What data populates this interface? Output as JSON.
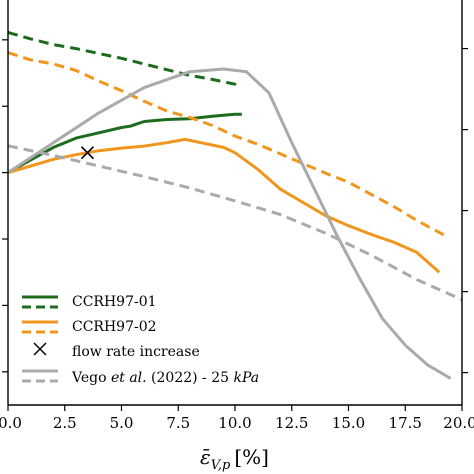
{
  "chart_data": {
    "type": "line",
    "xlabel": "ε̄V,p [%]",
    "xlim": [
      0,
      20
    ],
    "grid": false,
    "legend": "lower-left",
    "x_ticks": [
      "0.0",
      "2.5",
      "5.0",
      "7.5",
      "10.0",
      "12.5",
      "15.0",
      "17.5",
      "20.0"
    ],
    "series": [
      {
        "name": "CCRH97-01",
        "style": "solid",
        "color": "#1e6b1e",
        "axis": "left",
        "x": [
          0,
          1,
          2,
          3,
          4,
          5,
          5.4,
          6,
          7,
          8,
          9,
          10,
          10.3
        ],
        "y": [
          0.0,
          0.19,
          0.38,
          0.52,
          0.6,
          0.68,
          0.7,
          0.77,
          0.8,
          0.81,
          0.85,
          0.88,
          0.88
        ]
      },
      {
        "name": "CCRH97-01",
        "style": "dashed",
        "color": "#1e6b1e",
        "axis": "right",
        "x": [
          0,
          1,
          2,
          3,
          4,
          5,
          6,
          7,
          8,
          9,
          10,
          10.2
        ],
        "y": [
          2.2,
          2.12,
          2.05,
          2.0,
          1.94,
          1.88,
          1.81,
          1.74,
          1.67,
          1.62,
          1.56,
          1.52
        ]
      },
      {
        "name": "CCRH97-02",
        "style": "solid",
        "color": "#f0961c",
        "axis": "left",
        "x": [
          0,
          1,
          2,
          3,
          4,
          5,
          6,
          7,
          7.8,
          8.5,
          9.5,
          10,
          11,
          12,
          13,
          14,
          15,
          16,
          17,
          18,
          19
        ],
        "y": [
          0.0,
          0.1,
          0.2,
          0.27,
          0.33,
          0.37,
          0.4,
          0.45,
          0.5,
          0.45,
          0.38,
          0.3,
          0.05,
          -0.25,
          -0.45,
          -0.65,
          -0.8,
          -0.93,
          -1.05,
          -1.2,
          -1.5
        ]
      },
      {
        "name": "CCRH97-02",
        "style": "dashed",
        "color": "#f0961c",
        "axis": "right",
        "x": [
          0,
          1,
          2,
          3,
          4,
          5,
          6,
          7,
          8,
          9,
          10,
          11,
          12,
          13,
          14,
          15,
          16,
          17,
          18,
          19.2
        ],
        "y": [
          1.95,
          1.86,
          1.81,
          1.73,
          1.6,
          1.48,
          1.35,
          1.23,
          1.15,
          1.05,
          0.92,
          0.82,
          0.7,
          0.58,
          0.46,
          0.35,
          0.2,
          0.05,
          -0.12,
          -0.3
        ]
      },
      {
        "name": "Vego et al. (2022) - 25 kPa",
        "style": "solid",
        "color": "#aaaaaa",
        "axis": "left",
        "x": [
          0,
          2,
          4,
          6,
          8,
          9.5,
          10.5,
          11.5,
          12.5,
          13.5,
          14.5,
          15.5,
          16.5,
          17.5,
          18.5,
          19.5
        ],
        "y": [
          0.0,
          0.45,
          0.9,
          1.28,
          1.52,
          1.56,
          1.52,
          1.2,
          0.45,
          -0.25,
          -0.95,
          -1.6,
          -2.2,
          -2.6,
          -2.9,
          -3.1
        ]
      },
      {
        "name": "Vego et al. (2022) - 25 kPa",
        "style": "dashed",
        "color": "#aaaaaa",
        "axis": "right",
        "x": [
          0,
          2,
          4,
          6,
          8,
          10,
          12,
          14,
          16,
          18,
          20
        ],
        "y": [
          0.8,
          0.68,
          0.55,
          0.42,
          0.28,
          0.12,
          -0.05,
          -0.28,
          -0.55,
          -0.85,
          -1.1
        ]
      }
    ],
    "annotations": [
      {
        "type": "marker",
        "symbol": "x",
        "x": 3.5,
        "y": 0.3,
        "label": "flow rate increase"
      }
    ]
  },
  "legend": {
    "items": [
      {
        "label": "CCRH97-01",
        "color": "#1e6b1e"
      },
      {
        "label": "CCRH97-02",
        "color": "#f0961c"
      },
      {
        "label": "flow rate increase"
      },
      {
        "label_pre": "Vego ",
        "label_italic": "et al.",
        "label_post": " (2022) - 25 ",
        "label_unit": "kPa",
        "color": "#aaaaaa"
      }
    ]
  },
  "axes": {
    "x_label_symbol": "ε̄",
    "x_label_subscript": "V,p",
    "x_label_unit": "[%]"
  }
}
